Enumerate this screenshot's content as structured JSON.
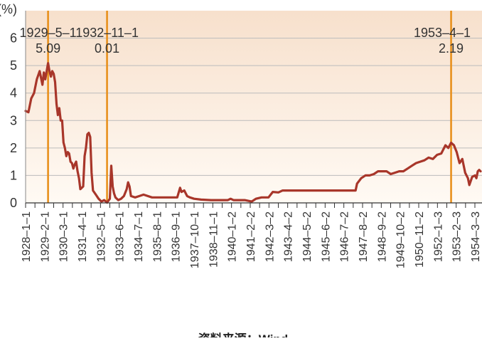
{
  "chart_data": {
    "type": "line",
    "unit_label": "(%)",
    "source": "资料来源：Wind",
    "yticks": [
      "0",
      "1",
      "2",
      "3",
      "4",
      "5",
      "6"
    ],
    "ylim": [
      0,
      7
    ],
    "x_tick_labels": [
      "1928–1–1",
      "1929–2–1",
      "1930–3–1",
      "1931–4–1",
      "1932–5–1",
      "1933–6–1",
      "1934–7–1",
      "1935–8–1",
      "1936–9–1",
      "1937–10–1",
      "1938–11–1",
      "1940–1–2",
      "1941–2–2",
      "1942–3–2",
      "1943–4–2",
      "1944–5–2",
      "1945–6–2",
      "1946–7–2",
      "1947–8–2",
      "1948–9–2",
      "1949–10–2",
      "1950–11–2",
      "1952–1–3",
      "1953–2–3",
      "1954–3–3"
    ],
    "grid": true,
    "colors": {
      "line": "#a8362a",
      "marker": "#e8901c",
      "grid": "#bbbbbb",
      "fill_top": "#f7e0cc",
      "fill_bottom": "#fffaf4"
    },
    "markers": [
      {
        "x": "1929-05",
        "date": "1929–5–1",
        "value": "5.09"
      },
      {
        "x": "1932-11",
        "date": "1932–11–1",
        "value": "0.01"
      },
      {
        "x": "1953-04",
        "date": "1953–4–1",
        "value": "2.19"
      }
    ],
    "series": [
      {
        "points": [
          [
            "1928-01",
            3.35
          ],
          [
            "1928-03",
            3.3
          ],
          [
            "1928-05",
            3.8
          ],
          [
            "1928-07",
            4.0
          ],
          [
            "1928-09",
            4.5
          ],
          [
            "1928-11",
            4.8
          ],
          [
            "1929-01",
            4.3
          ],
          [
            "1929-02",
            4.75
          ],
          [
            "1929-03",
            4.5
          ],
          [
            "1929-05",
            5.09
          ],
          [
            "1929-06",
            4.8
          ],
          [
            "1929-07",
            4.6
          ],
          [
            "1929-08",
            4.8
          ],
          [
            "1929-09",
            4.7
          ],
          [
            "1929-10",
            4.4
          ],
          [
            "1929-11",
            3.6
          ],
          [
            "1929-12",
            3.2
          ],
          [
            "1930-01",
            3.45
          ],
          [
            "1930-02",
            3.0
          ],
          [
            "1930-03",
            3.0
          ],
          [
            "1930-04",
            2.2
          ],
          [
            "1930-05",
            2.0
          ],
          [
            "1930-06",
            1.7
          ],
          [
            "1930-07",
            1.85
          ],
          [
            "1930-08",
            1.8
          ],
          [
            "1930-09",
            1.5
          ],
          [
            "1930-10",
            1.45
          ],
          [
            "1930-11",
            1.25
          ],
          [
            "1930-12",
            1.4
          ],
          [
            "1931-01",
            1.5
          ],
          [
            "1931-02",
            1.15
          ],
          [
            "1931-03",
            0.9
          ],
          [
            "1931-04",
            0.5
          ],
          [
            "1931-05",
            0.55
          ],
          [
            "1931-06",
            0.6
          ],
          [
            "1931-07",
            1.7
          ],
          [
            "1931-08",
            2.0
          ],
          [
            "1931-09",
            2.5
          ],
          [
            "1931-10",
            2.55
          ],
          [
            "1931-11",
            2.4
          ],
          [
            "1931-12",
            1.1
          ],
          [
            "1932-01",
            0.45
          ],
          [
            "1932-03",
            0.3
          ],
          [
            "1932-05",
            0.15
          ],
          [
            "1932-07",
            0.05
          ],
          [
            "1932-09",
            0.1
          ],
          [
            "1932-11",
            0.01
          ],
          [
            "1933-01",
            0.15
          ],
          [
            "1933-02",
            1.35
          ],
          [
            "1933-03",
            0.6
          ],
          [
            "1933-04",
            0.35
          ],
          [
            "1933-05",
            0.2
          ],
          [
            "1933-07",
            0.1
          ],
          [
            "1933-09",
            0.15
          ],
          [
            "1933-11",
            0.25
          ],
          [
            "1934-01",
            0.5
          ],
          [
            "1934-02",
            0.75
          ],
          [
            "1934-03",
            0.6
          ],
          [
            "1934-04",
            0.25
          ],
          [
            "1934-07",
            0.2
          ],
          [
            "1934-10",
            0.25
          ],
          [
            "1935-01",
            0.3
          ],
          [
            "1935-07",
            0.2
          ],
          [
            "1936-01",
            0.2
          ],
          [
            "1936-07",
            0.2
          ],
          [
            "1937-01",
            0.2
          ],
          [
            "1937-03",
            0.55
          ],
          [
            "1937-04",
            0.4
          ],
          [
            "1937-06",
            0.45
          ],
          [
            "1937-08",
            0.25
          ],
          [
            "1937-10",
            0.2
          ],
          [
            "1938-01",
            0.15
          ],
          [
            "1938-06",
            0.12
          ],
          [
            "1939-01",
            0.1
          ],
          [
            "1939-06",
            0.1
          ],
          [
            "1940-01",
            0.1
          ],
          [
            "1940-03",
            0.15
          ],
          [
            "1940-05",
            0.1
          ],
          [
            "1941-01",
            0.1
          ],
          [
            "1941-06",
            0.05
          ],
          [
            "1941-09",
            0.15
          ],
          [
            "1942-01",
            0.2
          ],
          [
            "1942-06",
            0.2
          ],
          [
            "1942-09",
            0.4
          ],
          [
            "1943-01",
            0.38
          ],
          [
            "1943-04",
            0.45
          ],
          [
            "1946-12",
            0.45
          ],
          [
            "1947-06",
            0.45
          ],
          [
            "1947-08",
            0.45
          ],
          [
            "1947-09",
            0.7
          ],
          [
            "1947-12",
            0.9
          ],
          [
            "1948-03",
            1.0
          ],
          [
            "1948-06",
            1.0
          ],
          [
            "1948-09",
            1.05
          ],
          [
            "1948-12",
            1.15
          ],
          [
            "1949-03",
            1.15
          ],
          [
            "1949-06",
            1.15
          ],
          [
            "1949-09",
            1.05
          ],
          [
            "1949-12",
            1.1
          ],
          [
            "1950-03",
            1.15
          ],
          [
            "1950-06",
            1.15
          ],
          [
            "1950-09",
            1.25
          ],
          [
            "1950-12",
            1.35
          ],
          [
            "1951-03",
            1.45
          ],
          [
            "1951-06",
            1.5
          ],
          [
            "1951-09",
            1.55
          ],
          [
            "1951-12",
            1.65
          ],
          [
            "1952-03",
            1.6
          ],
          [
            "1952-06",
            1.75
          ],
          [
            "1952-09",
            1.8
          ],
          [
            "1952-12",
            2.1
          ],
          [
            "1953-02",
            2.0
          ],
          [
            "1953-04",
            2.19
          ],
          [
            "1953-06",
            2.1
          ],
          [
            "1953-08",
            1.85
          ],
          [
            "1953-10",
            1.45
          ],
          [
            "1953-12",
            1.6
          ],
          [
            "1954-02",
            1.1
          ],
          [
            "1954-04",
            0.9
          ],
          [
            "1954-05",
            0.65
          ],
          [
            "1954-07",
            0.95
          ],
          [
            "1954-09",
            1.0
          ],
          [
            "1954-10",
            0.9
          ],
          [
            "1954-11",
            1.15
          ],
          [
            "1954-12",
            1.2
          ],
          [
            "1955-01",
            1.15
          ]
        ]
      }
    ]
  }
}
